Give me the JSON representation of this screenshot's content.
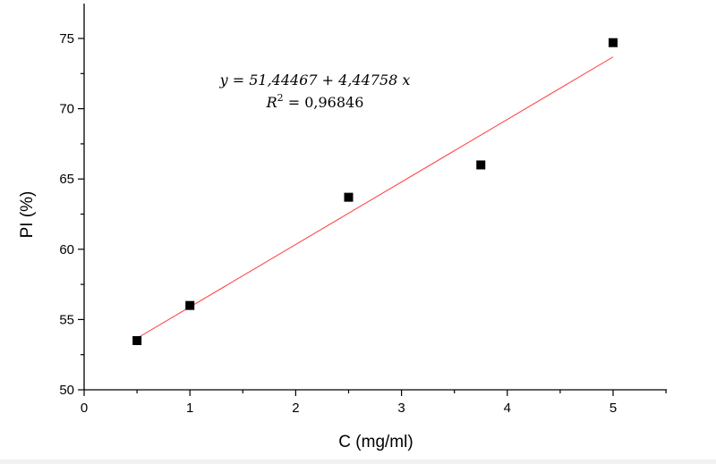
{
  "chart_data": {
    "type": "scatter",
    "xlabel": "C (mg/ml)",
    "ylabel": "PI (%)",
    "xlim": [
      0,
      5.5
    ],
    "ylim": [
      50,
      77.5
    ],
    "x_ticks": [
      0,
      1,
      2,
      3,
      4,
      5
    ],
    "y_ticks": [
      50,
      55,
      60,
      65,
      70,
      75
    ],
    "grid": false,
    "series": [
      {
        "points": [
          {
            "x": 0.5,
            "y": 53.5
          },
          {
            "x": 1.0,
            "y": 56.0
          },
          {
            "x": 2.5,
            "y": 63.7
          },
          {
            "x": 3.75,
            "y": 66.0
          },
          {
            "x": 5.0,
            "y": 74.7
          }
        ],
        "marker": "square",
        "color": "#000000"
      }
    ],
    "fit": {
      "intercept": 51.44467,
      "slope": 4.44758,
      "x_range": [
        0.5,
        5.0
      ],
      "color": "#ff4a4a"
    },
    "annotation": {
      "equation": "y = 51,44467 + 4,44758 x",
      "r2_label": "R",
      "r2_exponent": "2",
      "r2_value": " = 0,96846"
    }
  }
}
